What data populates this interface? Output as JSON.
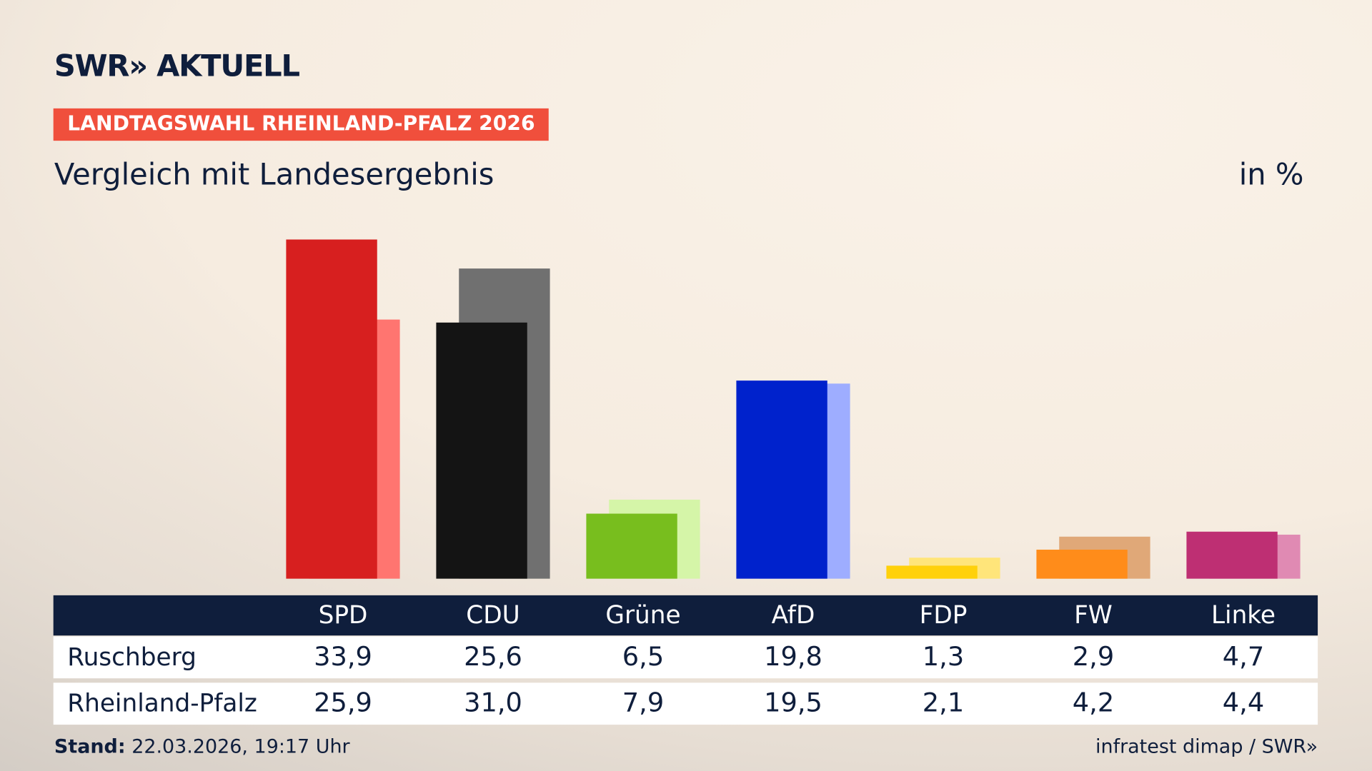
{
  "header": {
    "logo": "SWR» AKTUELL",
    "tag": "LANDTAGSWAHL RHEINLAND-PFALZ 2026",
    "subtitle": "Vergleich mit Landesergebnis",
    "unit": "in %"
  },
  "chart_data": {
    "type": "bar",
    "categories": [
      "SPD",
      "CDU",
      "Grüne",
      "AfD",
      "FDP",
      "FW",
      "Linke"
    ],
    "series": [
      {
        "name": "Ruschberg",
        "values": [
          33.9,
          25.6,
          6.5,
          19.8,
          1.3,
          2.9,
          4.7
        ],
        "display": [
          "33,9",
          "25,6",
          "6,5",
          "19,8",
          "1,3",
          "2,9",
          "4,7"
        ],
        "colors": [
          "#d71f1f",
          "#141414",
          "#78be1e",
          "#0022cc",
          "#ffd10a",
          "#ff8c1a",
          "#be2f73"
        ]
      },
      {
        "name": "Rheinland-Pfalz",
        "values": [
          25.9,
          31.0,
          7.9,
          19.5,
          2.1,
          4.2,
          4.4
        ],
        "display": [
          "25,9",
          "31,0",
          "7,9",
          "19,5",
          "2,1",
          "4,2",
          "4,4"
        ],
        "colors": [
          "#ff7570",
          "#707070",
          "#d5f5a8",
          "#9eadff",
          "#ffe57a",
          "#e0a878",
          "#e08ab3"
        ]
      }
    ],
    "ylim": [
      0,
      35
    ],
    "grid": false
  },
  "footer": {
    "stand_label": "Stand:",
    "stand_value": "22.03.2026, 19:17 Uhr",
    "source": "infratest dimap / SWR»"
  }
}
